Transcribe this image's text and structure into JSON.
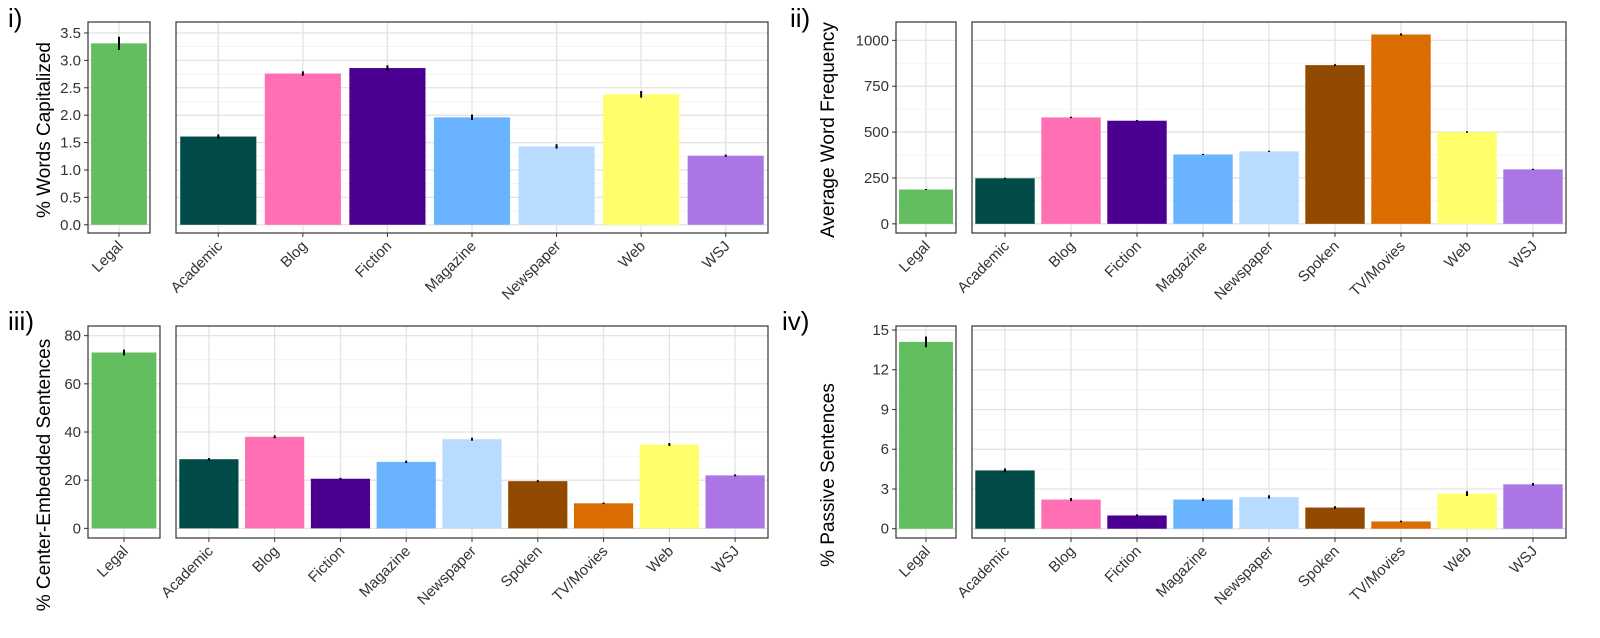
{
  "chart_data": [
    {
      "type": "bar",
      "panel_label": "i)",
      "ylabel": "% Words Capitalized",
      "ylim": [
        -0.15,
        3.7
      ],
      "yticks": [
        0.0,
        0.5,
        1.0,
        1.5,
        2.0,
        2.5,
        3.0,
        3.5
      ],
      "ytick_labels": [
        "0.0",
        "0.5",
        "1.0",
        "1.5",
        "2.0",
        "2.5",
        "3.0",
        "3.5"
      ],
      "grid": true,
      "legend": "none",
      "legal": {
        "category": "Legal",
        "value": 3.31,
        "error": 0.12,
        "color": "#62be5f"
      },
      "categories": [
        "Academic",
        "Blog",
        "Fiction",
        "Magazine",
        "Newspaper",
        "Web",
        "WSJ"
      ],
      "values": [
        1.61,
        2.76,
        2.86,
        1.96,
        1.43,
        2.38,
        1.26
      ],
      "errors": [
        0.04,
        0.04,
        0.05,
        0.05,
        0.04,
        0.06,
        0.02
      ],
      "colors": [
        "#004a48",
        "#ff6fb4",
        "#4b0092",
        "#6ab4ff",
        "#b8dcff",
        "#ffff6b",
        "#ab76e4"
      ]
    },
    {
      "type": "bar",
      "panel_label": "ii)",
      "ylabel": "Average Word Frequency",
      "ylim": [
        -50,
        1100
      ],
      "yticks": [
        0,
        250,
        500,
        750,
        1000
      ],
      "ytick_labels": [
        "0",
        "250",
        "500",
        "750",
        "1000"
      ],
      "grid": true,
      "legend": "none",
      "legal": {
        "category": "Legal",
        "value": 187,
        "error": 3,
        "color": "#62be5f"
      },
      "categories": [
        "Academic",
        "Blog",
        "Fiction",
        "Magazine",
        "Newspaper",
        "Spoken",
        "TV/Movies",
        "Web",
        "WSJ"
      ],
      "values": [
        248,
        580,
        562,
        378,
        395,
        865,
        1032,
        500,
        297
      ],
      "errors": [
        3,
        4,
        4,
        3,
        3,
        5,
        6,
        4,
        3
      ],
      "colors": [
        "#004a48",
        "#ff6fb4",
        "#4b0092",
        "#6ab4ff",
        "#b8dcff",
        "#924900",
        "#db6d00",
        "#ffff6b",
        "#ab76e4"
      ]
    },
    {
      "type": "bar",
      "panel_label": "iii)",
      "ylabel": "% Center-Embedded Sentences",
      "ylim": [
        -4,
        84
      ],
      "yticks": [
        0,
        20,
        40,
        60,
        80
      ],
      "ytick_labels": [
        "0",
        "20",
        "40",
        "60",
        "80"
      ],
      "grid": true,
      "legend": "none",
      "legal": {
        "category": "Legal",
        "value": 73,
        "error": 1.2,
        "color": "#62be5f"
      },
      "categories": [
        "Academic",
        "Blog",
        "Fiction",
        "Magazine",
        "Newspaper",
        "Spoken",
        "TV/Movies",
        "Web",
        "WSJ"
      ],
      "values": [
        28.7,
        38.0,
        20.6,
        27.6,
        37.0,
        19.6,
        10.4,
        34.8,
        22.0
      ],
      "errors": [
        0.5,
        0.6,
        0.4,
        0.5,
        0.6,
        0.4,
        0.3,
        0.6,
        0.4
      ],
      "colors": [
        "#004a48",
        "#ff6fb4",
        "#4b0092",
        "#6ab4ff",
        "#b8dcff",
        "#924900",
        "#db6d00",
        "#ffff6b",
        "#ab76e4"
      ]
    },
    {
      "type": "bar",
      "panel_label": "iv)",
      "ylabel": "% Passive Sentences",
      "ylim": [
        -0.7,
        15.3
      ],
      "yticks": [
        0,
        3,
        6,
        9,
        12,
        15
      ],
      "ytick_labels": [
        "0",
        "3",
        "6",
        "9",
        "12",
        "15"
      ],
      "grid": true,
      "legend": "none",
      "legal": {
        "category": "Legal",
        "value": 14.1,
        "error": 0.4,
        "color": "#62be5f"
      },
      "categories": [
        "Academic",
        "Blog",
        "Fiction",
        "Magazine",
        "Newspaper",
        "Spoken",
        "TV/Movies",
        "Web",
        "WSJ"
      ],
      "values": [
        4.4,
        2.2,
        1.0,
        2.2,
        2.4,
        1.6,
        0.55,
        2.65,
        3.35
      ],
      "errors": [
        0.15,
        0.12,
        0.08,
        0.12,
        0.12,
        0.1,
        0.06,
        0.18,
        0.1
      ],
      "colors": [
        "#004a48",
        "#ff6fb4",
        "#4b0092",
        "#6ab4ff",
        "#b8dcff",
        "#924900",
        "#db6d00",
        "#ffff6b",
        "#ab76e4"
      ]
    }
  ]
}
